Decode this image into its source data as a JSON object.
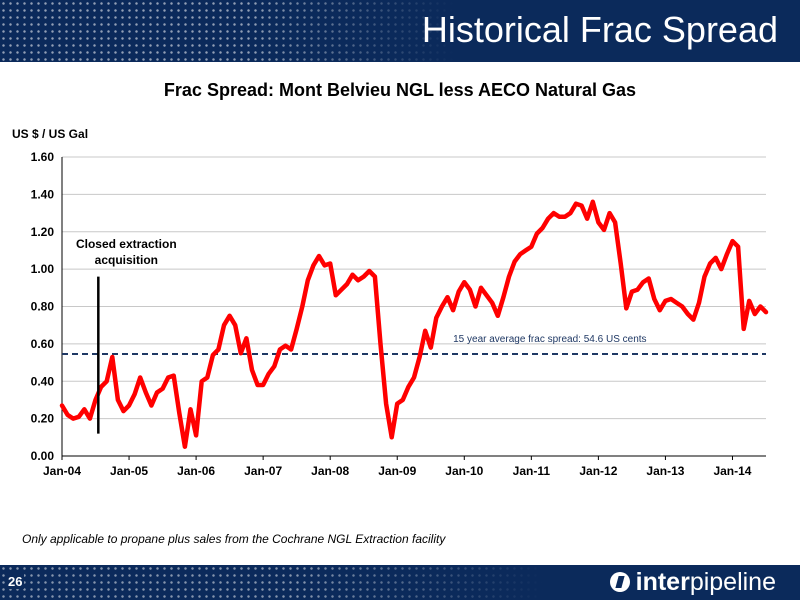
{
  "slide": {
    "title": "Historical Frac Spread",
    "page_number": "26",
    "footnote": "Only applicable to propane plus sales from the Cochrane NGL Extraction facility",
    "logo_text_bold": "inter",
    "logo_text": "pipeline"
  },
  "colors": {
    "navy": "#0b2a5b",
    "series": "#ff0000",
    "average": "#1f3864"
  },
  "chart_data": {
    "type": "line",
    "title": "Frac Spread: Mont Belvieu NGL less AECO Natural Gas",
    "ylabel": "US $ / US Gal",
    "xlabel": "",
    "ylim": [
      0,
      1.6
    ],
    "yticks": [
      "0.00",
      "0.20",
      "0.40",
      "0.60",
      "0.80",
      "1.00",
      "1.20",
      "1.40",
      "1.60"
    ],
    "xticks": [
      "Jan-04",
      "Jan-05",
      "Jan-06",
      "Jan-07",
      "Jan-08",
      "Jan-09",
      "Jan-10",
      "Jan-11",
      "Jan-12",
      "Jan-13",
      "Jan-14"
    ],
    "grid": true,
    "average": {
      "value": 0.546,
      "label": "15 year average frac spread: 54.6 US cents"
    },
    "annotation": {
      "label_line1": "Closed extraction",
      "label_line2": "acquisition",
      "x": 6.5,
      "y_from": 0.12,
      "y_to": 0.96
    },
    "series": [
      {
        "values": [
          0.27,
          0.22,
          0.2,
          0.21,
          0.25,
          0.2,
          0.3,
          0.37,
          0.4,
          0.53,
          0.3,
          0.24,
          0.27,
          0.33,
          0.42,
          0.34,
          0.27,
          0.34,
          0.36,
          0.42,
          0.43,
          0.23,
          0.05,
          0.25,
          0.11,
          0.4,
          0.42,
          0.54,
          0.57,
          0.7,
          0.75,
          0.7,
          0.55,
          0.63,
          0.46,
          0.38,
          0.38,
          0.44,
          0.48,
          0.57,
          0.59,
          0.57,
          0.68,
          0.8,
          0.94,
          1.02,
          1.07,
          1.02,
          1.03,
          0.86,
          0.89,
          0.92,
          0.97,
          0.94,
          0.96,
          0.99,
          0.96,
          0.6,
          0.28,
          0.1,
          0.28,
          0.3,
          0.37,
          0.42,
          0.53,
          0.67,
          0.58,
          0.74,
          0.8,
          0.85,
          0.78,
          0.88,
          0.93,
          0.89,
          0.8,
          0.9,
          0.86,
          0.82,
          0.75,
          0.85,
          0.96,
          1.04,
          1.08,
          1.1,
          1.12,
          1.19,
          1.22,
          1.27,
          1.3,
          1.28,
          1.28,
          1.3,
          1.35,
          1.34,
          1.27,
          1.36,
          1.25,
          1.21,
          1.3,
          1.25,
          1.03,
          0.79,
          0.88,
          0.89,
          0.93,
          0.95,
          0.84,
          0.78,
          0.83,
          0.84,
          0.82,
          0.8,
          0.76,
          0.73,
          0.82,
          0.96,
          1.03,
          1.06,
          1.0,
          1.08,
          1.15,
          1.12,
          0.68,
          0.83,
          0.76,
          0.8,
          0.77
        ]
      }
    ]
  }
}
